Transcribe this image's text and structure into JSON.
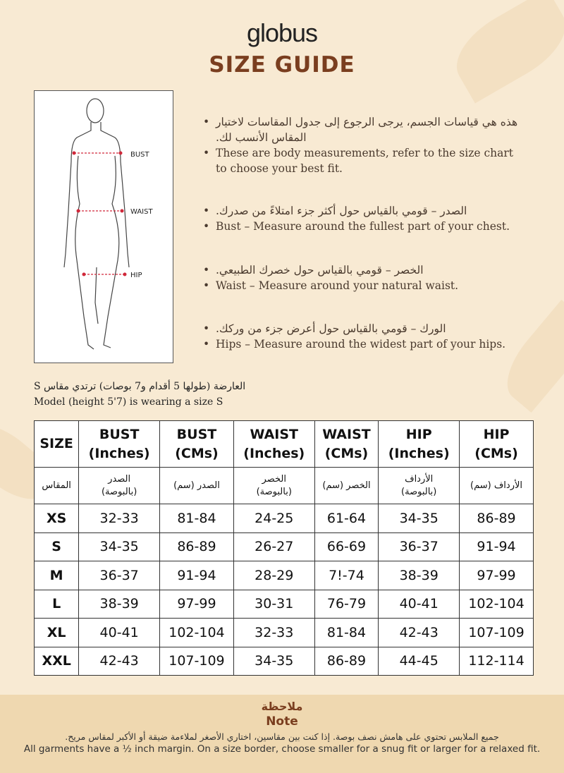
{
  "brand": "globus",
  "title": "SIZE GUIDE",
  "figure": {
    "labels": [
      "BUST",
      "WAIST",
      "HIP"
    ]
  },
  "bullets": [
    {
      "ar": "هذه هي قياسات الجسم، يرجى الرجوع إلى جدول المقاسات لاختيار المقاس الأنسب لك.",
      "en": "These are body measurements, refer to the size chart to choose your best fit."
    },
    {
      "ar": "الصدر – قومي بالقياس حول أكثر جزء امتلاءً من صدرك.",
      "en": "Bust – Measure around the fullest part of your chest."
    },
    {
      "ar": "الخصر – قومي بالقياس حول خصرك الطبيعي.",
      "en": "Waist – Measure around your natural waist."
    },
    {
      "ar": "الورك – قومي بالقياس حول أعرض جزء من وركك.",
      "en": "Hips – Measure around the widest part of your hips."
    }
  ],
  "model": {
    "ar": "العارضة (طولها 5 أقدام و7 بوصات) ترتدي مقاس S",
    "en": "Model (height 5'7) is wearing a size S"
  },
  "table": {
    "headers": [
      [
        "SIZE",
        ""
      ],
      [
        "BUST",
        "(Inches)"
      ],
      [
        "BUST",
        "(CMs)"
      ],
      [
        "WAIST",
        "(Inches)"
      ],
      [
        "WAIST",
        "(CMs)"
      ],
      [
        "HIP",
        "(Inches)"
      ],
      [
        "HIP",
        "(CMs)"
      ]
    ],
    "headers_ar": [
      [
        "المقاس",
        ""
      ],
      [
        "الصدر",
        "(بالبوصة)"
      ],
      [
        "الصدر (سم)",
        ""
      ],
      [
        "الخصر",
        "(بالبوصة)"
      ],
      [
        "الخصر (سم)",
        ""
      ],
      [
        "الأرداف",
        "(بالبوصة)"
      ],
      [
        "الأرداف (سم)",
        ""
      ]
    ],
    "rows": [
      [
        "XS",
        "32-33",
        "81-84",
        "24-25",
        "61-64",
        "34-35",
        "86-89"
      ],
      [
        "S",
        "34-35",
        "86-89",
        "26-27",
        "66-69",
        "36-37",
        "91-94"
      ],
      [
        "M",
        "36-37",
        "91-94",
        "28-29",
        "7!-74",
        "38-39",
        "97-99"
      ],
      [
        "L",
        "38-39",
        "97-99",
        "30-31",
        "76-79",
        "40-41",
        "102-104"
      ],
      [
        "XL",
        "40-41",
        "102-104",
        "32-33",
        "81-84",
        "42-43",
        "107-109"
      ],
      [
        "XXL",
        "42-43",
        "107-109",
        "34-35",
        "86-89",
        "44-45",
        "112-114"
      ]
    ]
  },
  "note": {
    "title_ar": "ملاحظة",
    "title": "Note",
    "text_ar": "جميع الملابس تحتوي على هامش نصف بوصة. إذا كنت بين مقاسين، اختاري الأصغر لملاءمة ضيقة أو الأكبر لمقاس مريح.",
    "text": "All garments have a ½ inch margin. On a size border, choose smaller for a snug fit or larger for a relaxed fit."
  },
  "colors": {
    "background": "#f8ead3",
    "accent": "#7a3e1f",
    "note_band": "#efd8b0",
    "marker": "#d0283a"
  }
}
